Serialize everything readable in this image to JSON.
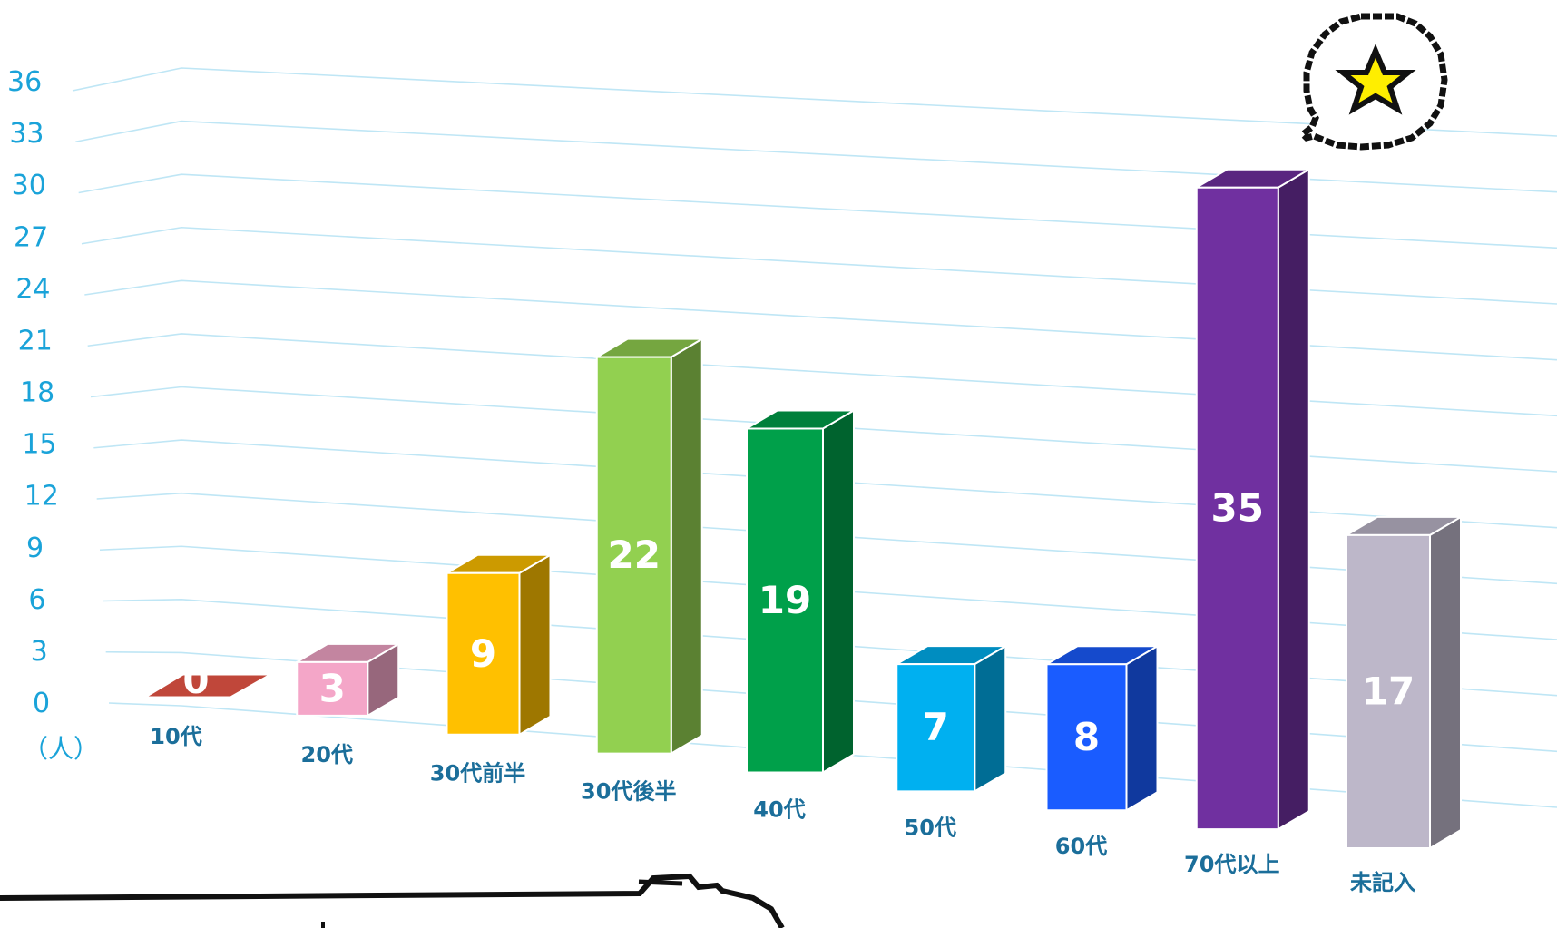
{
  "chart_data": {
    "type": "bar",
    "categories": [
      "10代",
      "20代",
      "30代前半",
      "30代後半",
      "40代",
      "50代",
      "60代",
      "70代以上",
      "未記入"
    ],
    "values": [
      0,
      3,
      9,
      22,
      19,
      7,
      8,
      35,
      17
    ],
    "value_labels": [
      "0",
      "3",
      "9",
      "22",
      "19",
      "7",
      "8",
      "35",
      "17"
    ],
    "y_ticks": [
      "0",
      "3",
      "6",
      "9",
      "12",
      "15",
      "18",
      "21",
      "24",
      "27",
      "30",
      "33",
      "36"
    ],
    "ylim": [
      0,
      36
    ],
    "y_unit": "（人）",
    "grid": true,
    "legend": "none",
    "three_d": true,
    "colors": [
      "#c0473a",
      "#f4a6c8",
      "#ffc000",
      "#92d050",
      "#00a04a",
      "#00b0f0",
      "#1a5cff",
      "#7030a0",
      "#bdb7c9"
    ],
    "callout_icon": "star-speech-bubble-icon"
  }
}
